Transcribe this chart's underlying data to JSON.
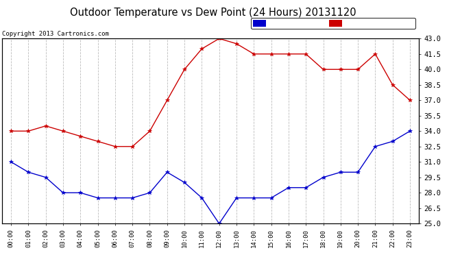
{
  "title": "Outdoor Temperature vs Dew Point (24 Hours) 20131120",
  "copyright": "Copyright 2013 Cartronics.com",
  "hours": [
    "00:00",
    "01:00",
    "02:00",
    "03:00",
    "04:00",
    "05:00",
    "06:00",
    "07:00",
    "08:00",
    "09:00",
    "10:00",
    "11:00",
    "12:00",
    "13:00",
    "14:00",
    "15:00",
    "16:00",
    "17:00",
    "18:00",
    "19:00",
    "20:00",
    "21:00",
    "22:00",
    "23:00"
  ],
  "temperature": [
    34.0,
    34.0,
    34.5,
    34.0,
    33.5,
    33.0,
    32.5,
    32.5,
    34.0,
    37.0,
    40.0,
    42.0,
    43.0,
    42.5,
    41.5,
    41.5,
    41.5,
    41.5,
    40.0,
    40.0,
    40.0,
    41.5,
    38.5,
    37.0
  ],
  "dew_point": [
    31.0,
    30.0,
    29.5,
    28.0,
    28.0,
    27.5,
    27.5,
    27.5,
    28.0,
    30.0,
    29.0,
    27.5,
    25.0,
    27.5,
    27.5,
    27.5,
    28.5,
    28.5,
    29.5,
    30.0,
    30.0,
    32.5,
    33.0,
    34.0
  ],
  "temp_color": "#cc0000",
  "dew_color": "#0000cc",
  "bg_color": "#ffffff",
  "grid_color": "#bbbbbb",
  "ylim": [
    25.0,
    43.0
  ],
  "yticks": [
    25.0,
    26.5,
    28.0,
    29.5,
    31.0,
    32.5,
    34.0,
    35.5,
    37.0,
    38.5,
    40.0,
    41.5,
    43.0
  ],
  "legend_dew_bg": "#0000cc",
  "legend_temp_bg": "#cc0000"
}
